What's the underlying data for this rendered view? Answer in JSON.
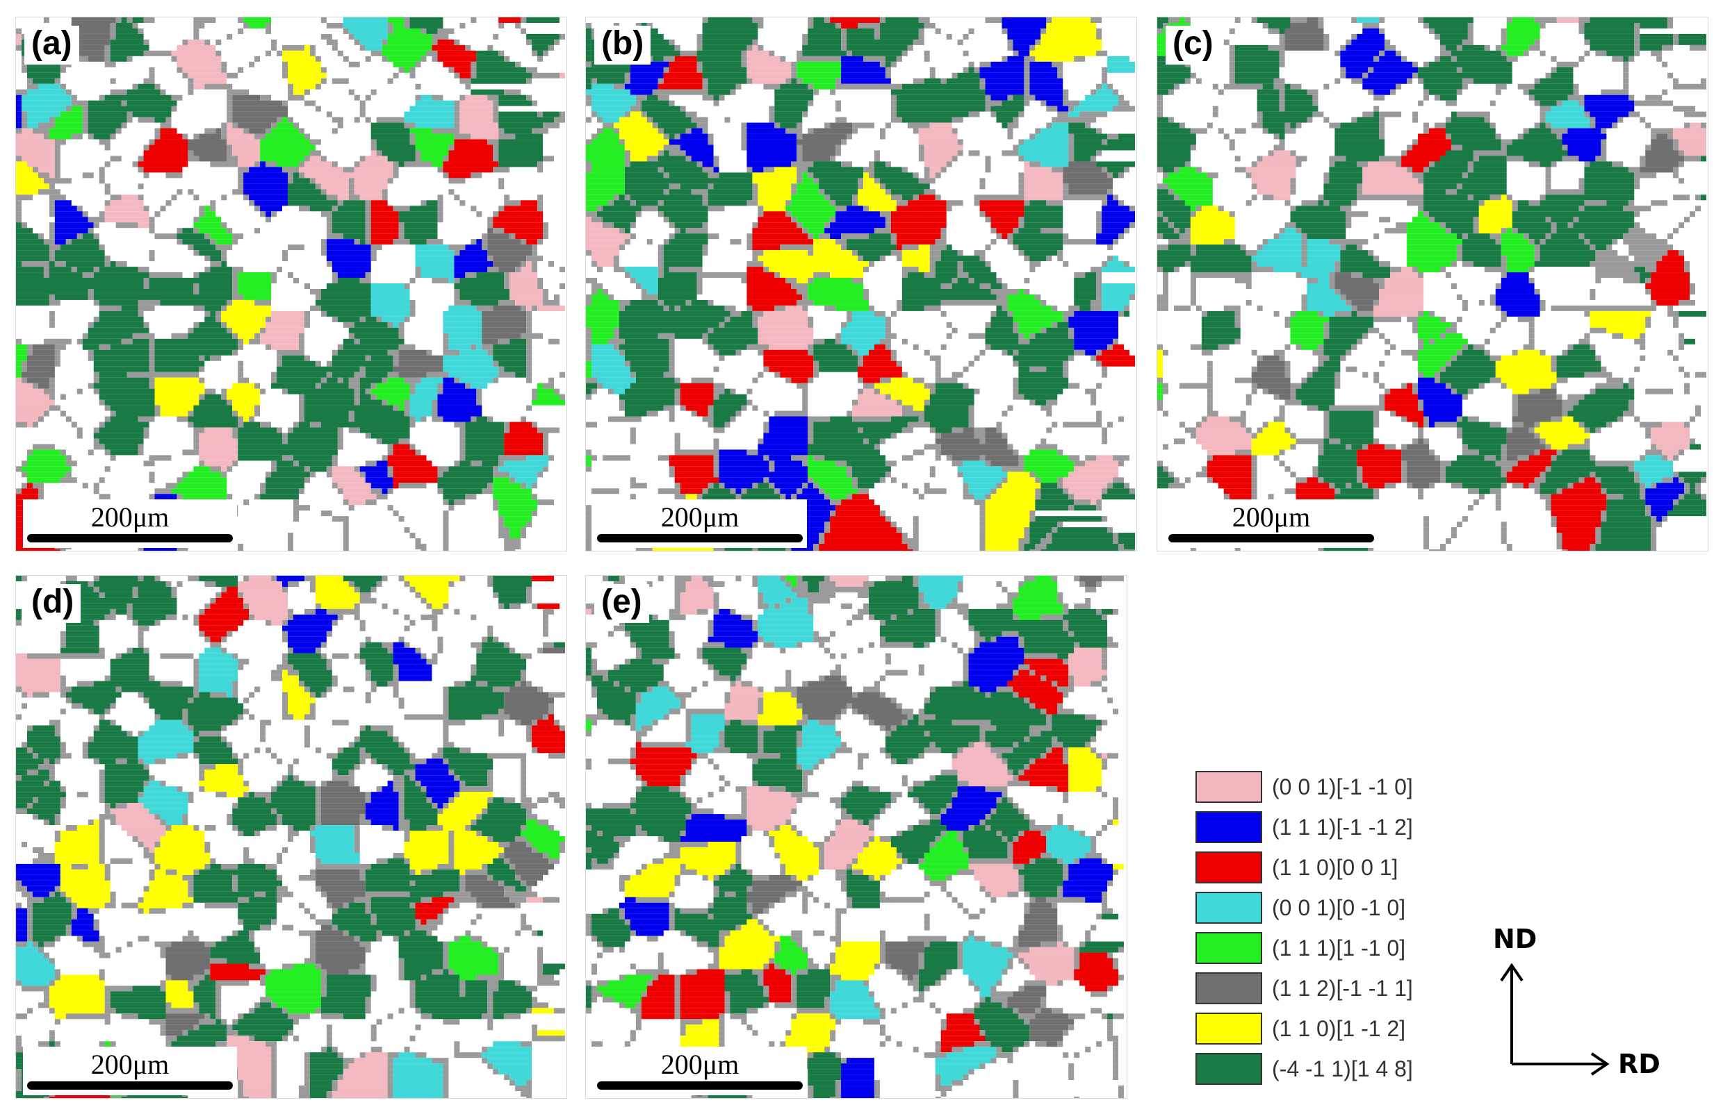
{
  "panels": [
    {
      "label": "(a)",
      "scale": "200μm"
    },
    {
      "label": "(b)",
      "scale": "200μm"
    },
    {
      "label": "(c)",
      "scale": "200μm"
    },
    {
      "label": "(d)",
      "scale": "200μm"
    },
    {
      "label": "(e)",
      "scale": "200μm"
    }
  ],
  "legend": [
    {
      "label": "(0 0 1)[-1 -1 0]",
      "color": "#f4b8c0"
    },
    {
      "label": "(1 1 1)[-1 -1 2]",
      "color": "#0000ee"
    },
    {
      "label": "(1 1 0)[0 0 1]",
      "color": "#ee0000"
    },
    {
      "label": "(0 0 1)[0 -1 0]",
      "color": "#40d8d8"
    },
    {
      "label": "(1 1 1)[1 -1 0]",
      "color": "#22ee22"
    },
    {
      "label": "(1 1 2)[-1 -1 1]",
      "color": "#707070"
    },
    {
      "label": "(1 1 0)[1 -1 2]",
      "color": "#ffff00"
    },
    {
      "label": "(-4 -1 1)[1 4 8]",
      "color": "#1a7a46"
    }
  ],
  "axes": {
    "nd": "ND",
    "rd": "RD"
  }
}
